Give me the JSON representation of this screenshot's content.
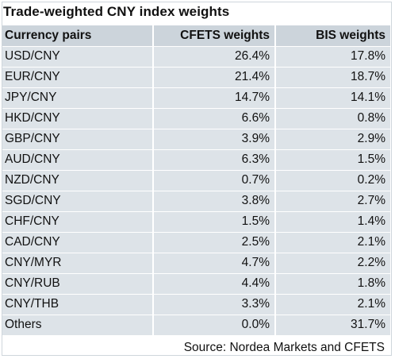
{
  "title": "Trade-weighted CNY index weights",
  "headers": [
    "Currency pairs",
    "CFETS weights",
    "BIS weights"
  ],
  "rows": [
    [
      "USD/CNY",
      "26.4%",
      "17.8%"
    ],
    [
      "EUR/CNY",
      "21.4%",
      "18.7%"
    ],
    [
      "JPY/CNY",
      "14.7%",
      "14.1%"
    ],
    [
      "HKD/CNY",
      "6.6%",
      "0.8%"
    ],
    [
      "GBP/CNY",
      "3.9%",
      "2.9%"
    ],
    [
      "AUD/CNY",
      "6.3%",
      "1.5%"
    ],
    [
      "NZD/CNY",
      "0.7%",
      "0.2%"
    ],
    [
      "SGD/CNY",
      "3.8%",
      "2.7%"
    ],
    [
      "CHF/CNY",
      "1.5%",
      "1.4%"
    ],
    [
      "CAD/CNY",
      "2.5%",
      "2.1%"
    ],
    [
      "CNY/MYR",
      "4.7%",
      "2.2%"
    ],
    [
      "CNY/RUB",
      "4.4%",
      "1.8%"
    ],
    [
      "CNY/THB",
      "3.3%",
      "2.1%"
    ],
    [
      "Others",
      "0.0%",
      "31.7%"
    ]
  ],
  "source": "Source: Nordea Markets and CFETS"
}
